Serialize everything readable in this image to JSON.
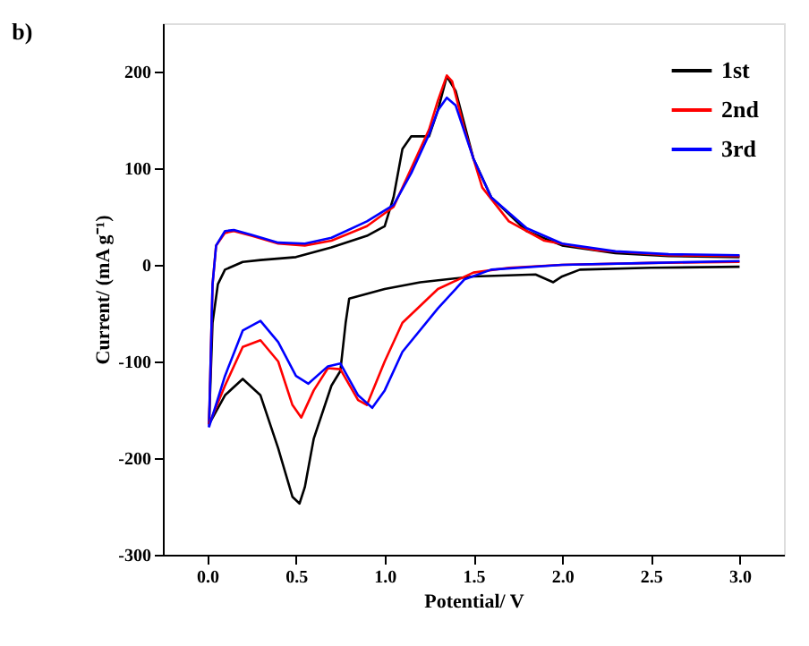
{
  "chart_data": {
    "type": "line",
    "xlabel": "Potential/ V",
    "ylabel": "Current/ (mA g⁻¹)",
    "annotations": [
      "b)"
    ],
    "xlim": [
      -0.25,
      3.25
    ],
    "xticks": [
      {
        "value": 0,
        "label": "0.0"
      },
      0.5,
      {
        "value": 1,
        "label": "1.0"
      },
      1.5,
      {
        "value": 2,
        "label": "2.0"
      },
      2.5,
      {
        "value": 3,
        "label": "3.0"
      }
    ],
    "ylim": [
      -300,
      250
    ],
    "yticks": [
      -300,
      -200,
      -100,
      0,
      100,
      200
    ],
    "grid": false,
    "legend": "top right",
    "marker": "none",
    "line_style": "solid",
    "series": [
      {
        "name": "1st",
        "color": "#000000",
        "x": [
          0.01,
          0.03,
          0.06,
          0.1,
          0.2,
          0.3,
          0.5,
          0.7,
          0.9,
          1.0,
          1.05,
          1.1,
          1.15,
          1.25,
          1.3,
          1.35,
          1.4,
          1.5,
          1.6,
          1.8,
          2.0,
          2.3,
          2.6,
          3.0
        ],
        "values": [
          -165,
          -60,
          -20,
          -5,
          3,
          5,
          8,
          18,
          30,
          40,
          70,
          120,
          133,
          133,
          160,
          195,
          180,
          110,
          70,
          35,
          20,
          12,
          9,
          8
        ]
      },
      {
        "name": "2nd",
        "color": "#ff0000",
        "x": [
          0.01,
          0.03,
          0.05,
          0.1,
          0.15,
          0.25,
          0.4,
          0.55,
          0.7,
          0.9,
          1.05,
          1.15,
          1.25,
          1.3,
          1.35,
          1.38,
          1.45,
          1.55,
          1.7,
          1.9,
          2.2,
          2.6,
          3.0
        ],
        "values": [
          -165,
          -20,
          20,
          33,
          35,
          30,
          22,
          20,
          25,
          40,
          60,
          100,
          140,
          170,
          196,
          190,
          140,
          80,
          45,
          25,
          15,
          10,
          9
        ]
      },
      {
        "name": "3rd",
        "color": "#0000ff",
        "x": [
          0.01,
          0.03,
          0.05,
          0.1,
          0.15,
          0.25,
          0.4,
          0.55,
          0.7,
          0.9,
          1.05,
          1.15,
          1.25,
          1.3,
          1.35,
          1.4,
          1.5,
          1.6,
          1.8,
          2.0,
          2.3,
          2.6,
          3.0
        ],
        "values": [
          -168,
          -20,
          20,
          35,
          36,
          31,
          23,
          22,
          28,
          45,
          62,
          95,
          135,
          160,
          173,
          165,
          110,
          70,
          38,
          22,
          14,
          11,
          10
        ]
      },
      {
        "color": "#000000",
        "x": [
          0.01,
          0.1,
          0.2,
          0.3,
          0.4,
          0.48,
          0.52,
          0.55,
          0.6,
          0.7,
          0.75,
          0.78,
          0.8,
          1.0,
          1.2,
          1.5,
          1.85,
          1.95,
          2.0,
          2.1,
          2.5,
          3.0
        ],
        "values": [
          -165,
          -135,
          -118,
          -135,
          -190,
          -240,
          -247,
          -230,
          -180,
          -125,
          -110,
          -60,
          -35,
          -25,
          -18,
          -12,
          -10,
          -18,
          -12,
          -5,
          -3,
          -2
        ]
      },
      {
        "color": "#ff0000",
        "x": [
          0.01,
          0.1,
          0.2,
          0.3,
          0.4,
          0.48,
          0.53,
          0.6,
          0.68,
          0.75,
          0.85,
          0.9,
          1.0,
          1.1,
          1.3,
          1.5,
          1.7,
          2.0,
          2.5,
          3.0
        ],
        "values": [
          -165,
          -125,
          -85,
          -78,
          -100,
          -145,
          -158,
          -130,
          -107,
          -108,
          -140,
          -145,
          -100,
          -60,
          -25,
          -8,
          -3,
          0,
          2,
          3
        ]
      },
      {
        "color": "#0000ff",
        "x": [
          0.01,
          0.1,
          0.2,
          0.3,
          0.4,
          0.5,
          0.57,
          0.68,
          0.75,
          0.85,
          0.93,
          1.0,
          1.1,
          1.3,
          1.45,
          1.6,
          2.0,
          2.5,
          3.0
        ],
        "values": [
          -168,
          -115,
          -68,
          -58,
          -80,
          -115,
          -123,
          -105,
          -102,
          -135,
          -148,
          -130,
          -90,
          -45,
          -15,
          -5,
          0,
          2,
          4
        ]
      }
    ]
  }
}
